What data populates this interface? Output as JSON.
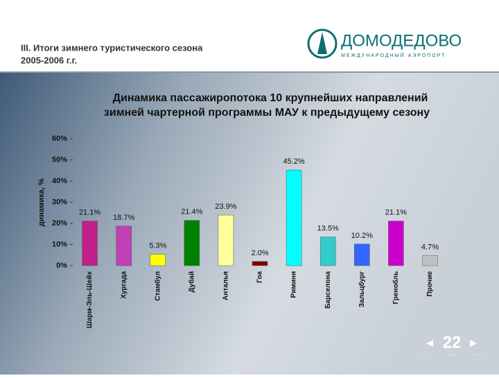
{
  "header": {
    "title_lines": [
      "III. Итоги зимнего туристического сезона",
      "2005-2006 г.г."
    ]
  },
  "logo": {
    "name": "ДОМОДЕДОВО",
    "subtitle": "МЕЖДУНАРОДНЫЙ АЭРОПОРТ"
  },
  "chart_data": {
    "type": "bar",
    "title_lines": [
      "Динамика пассажиропотока 10 крупнейших направлений",
      "зимней чартерной программы МАУ к предыдущему сезону"
    ],
    "y_label": "динамика, %",
    "categories": [
      "Шарм-Эль-Шейх",
      "Хургада",
      "Стамбул",
      "Дубай",
      "Анталья",
      "Гоа",
      "Римини",
      "Барселона",
      "Зальцбург",
      "Гренобль",
      "Прочие"
    ],
    "values": [
      21.1,
      18.7,
      5.3,
      21.4,
      23.9,
      2.0,
      45.2,
      13.5,
      10.2,
      21.1,
      4.7
    ],
    "value_labels": [
      "21.1%",
      "18.7%",
      "5.3%",
      "21.4%",
      "23.9%",
      "2.0%",
      "45.2%",
      "13.5%",
      "10.2%",
      "21.1%",
      "4.7%"
    ],
    "colors": [
      "#c0208c",
      "#c040b8",
      "#ffff00",
      "#008000",
      "#ffff99",
      "#800000",
      "#00ffff",
      "#33cccc",
      "#3366ff",
      "#cc00cc",
      "#c0c0c0"
    ],
    "ylim": [
      0,
      60
    ],
    "yticks": [
      {
        "value": 0,
        "label": "0%"
      },
      {
        "value": 10,
        "label": "10%"
      },
      {
        "value": 20,
        "label": "20%"
      },
      {
        "value": 30,
        "label": "30%"
      },
      {
        "value": 40,
        "label": "40%"
      },
      {
        "value": 50,
        "label": "50%"
      },
      {
        "value": 60,
        "label": "60%"
      }
    ]
  },
  "footer": {
    "page": "22",
    "nav": [
      "BACK",
      "PAGE",
      "NEXT"
    ]
  }
}
